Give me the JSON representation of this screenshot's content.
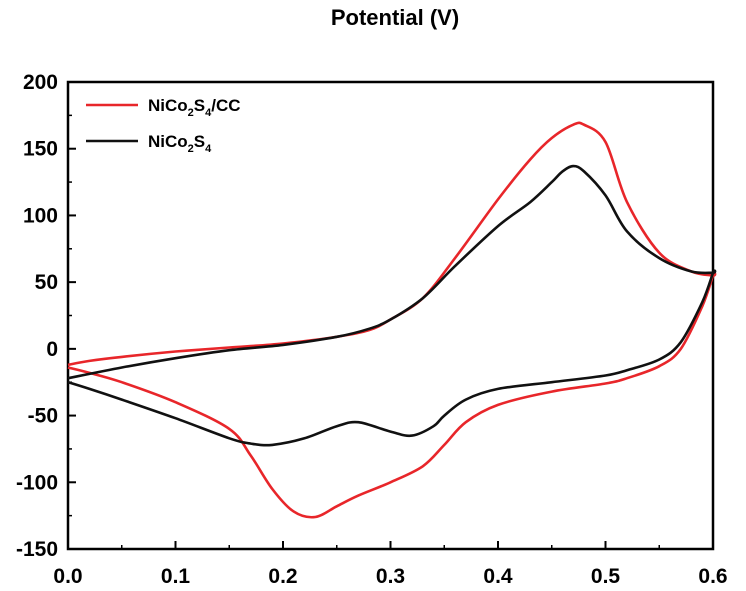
{
  "chart_data": {
    "type": "line",
    "title": "Potential (V)",
    "xlabel": "",
    "ylabel": "",
    "xlim": [
      0.0,
      0.6
    ],
    "ylim": [
      -150,
      200
    ],
    "xticks": [
      "0.0",
      "0.1",
      "0.2",
      "0.3",
      "0.4",
      "0.5",
      "0.6"
    ],
    "yticks": [
      "200",
      "150",
      "100",
      "50",
      "0",
      "-50",
      "-100",
      "-150"
    ],
    "grid": false,
    "legend_position": "top-left",
    "series": [
      {
        "name": "NiCo2S4/CC",
        "legend_parts": [
          "NiCo",
          "2",
          "S",
          "4",
          "/CC"
        ],
        "color": "#e8262a",
        "x": [
          0.0,
          0.02,
          0.05,
          0.1,
          0.15,
          0.2,
          0.25,
          0.28,
          0.3,
          0.33,
          0.36,
          0.4,
          0.43,
          0.45,
          0.47,
          0.48,
          0.5,
          0.52,
          0.55,
          0.58,
          0.6,
          0.6,
          0.59,
          0.57,
          0.55,
          0.52,
          0.5,
          0.45,
          0.4,
          0.37,
          0.35,
          0.33,
          0.3,
          0.27,
          0.25,
          0.23,
          0.21,
          0.19,
          0.17,
          0.15,
          0.1,
          0.05,
          0.02,
          0.0
        ],
        "y": [
          -12,
          -9,
          -6,
          -2,
          1,
          4,
          9,
          14,
          22,
          38,
          68,
          112,
          142,
          158,
          168,
          168,
          155,
          110,
          72,
          58,
          55,
          55,
          32,
          0,
          -13,
          -22,
          -26,
          -32,
          -42,
          -55,
          -72,
          -88,
          -100,
          -110,
          -118,
          -126,
          -122,
          -105,
          -80,
          -60,
          -40,
          -25,
          -18,
          -14
        ]
      },
      {
        "name": "NiCo2S4",
        "legend_parts": [
          "NiCo",
          "2",
          "S",
          "4",
          ""
        ],
        "color": "#111111",
        "x": [
          0.0,
          0.05,
          0.1,
          0.15,
          0.2,
          0.25,
          0.28,
          0.3,
          0.33,
          0.36,
          0.4,
          0.43,
          0.45,
          0.46,
          0.47,
          0.48,
          0.5,
          0.52,
          0.55,
          0.58,
          0.6,
          0.6,
          0.59,
          0.57,
          0.55,
          0.52,
          0.5,
          0.45,
          0.4,
          0.37,
          0.35,
          0.34,
          0.32,
          0.3,
          0.27,
          0.25,
          0.22,
          0.19,
          0.17,
          0.15,
          0.1,
          0.05,
          0.02,
          0.0
        ],
        "y": [
          -22,
          -14,
          -7,
          -1,
          3,
          9,
          15,
          22,
          38,
          62,
          92,
          110,
          125,
          133,
          137,
          133,
          115,
          88,
          68,
          58,
          57,
          57,
          35,
          5,
          -8,
          -16,
          -20,
          -25,
          -30,
          -38,
          -50,
          -58,
          -65,
          -62,
          -55,
          -58,
          -67,
          -72,
          -71,
          -67,
          -52,
          -38,
          -30,
          -25
        ]
      }
    ]
  }
}
